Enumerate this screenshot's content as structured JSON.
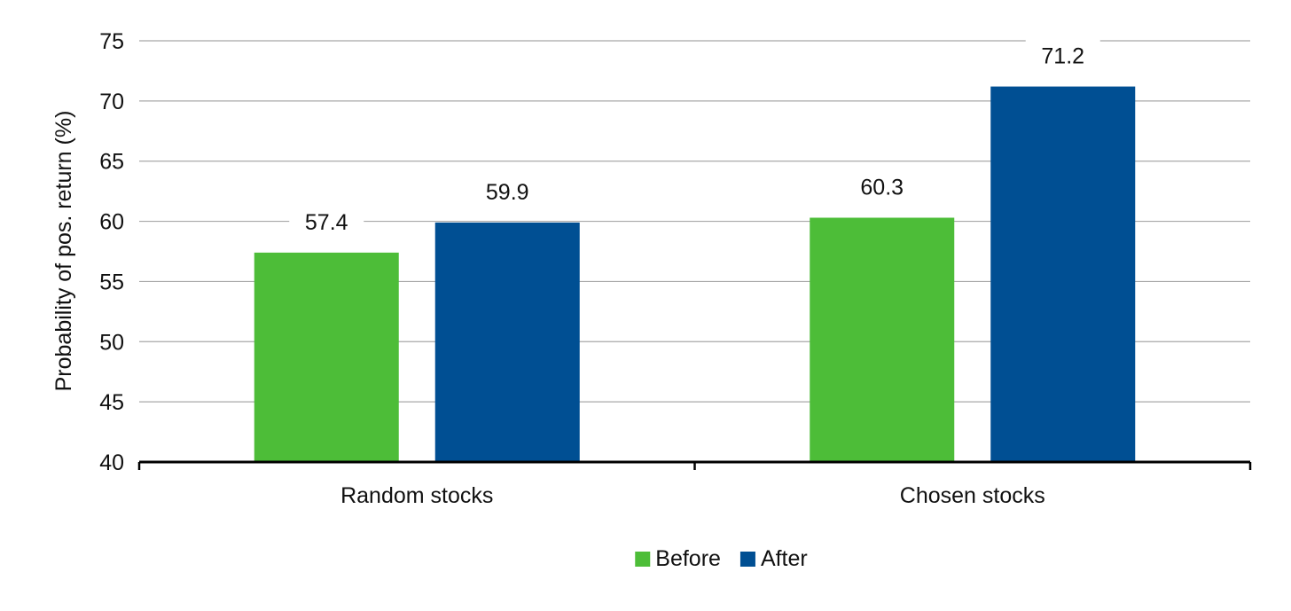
{
  "chart_data": {
    "type": "bar",
    "title": "",
    "xlabel": "",
    "ylabel": "Probability of pos. return (%)",
    "ylim": [
      40,
      75
    ],
    "yticks": [
      40,
      45,
      50,
      55,
      60,
      65,
      70,
      75
    ],
    "categories": [
      "Random stocks",
      "Chosen stocks"
    ],
    "series": [
      {
        "name": "Before",
        "color": "#4dbd38",
        "values": [
          57.4,
          60.3
        ]
      },
      {
        "name": "After",
        "color": "#004f93",
        "values": [
          59.9,
          71.2
        ]
      }
    ],
    "data_labels": true,
    "grid": true,
    "legend": "bottom-center"
  }
}
